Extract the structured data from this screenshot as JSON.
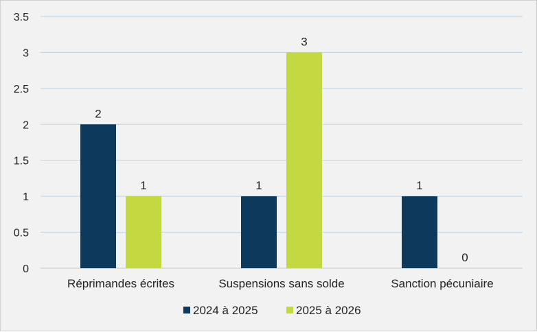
{
  "chart_data": {
    "type": "bar",
    "categories": [
      "Réprimandes écrites",
      "Suspensions sans solde",
      "Sanction pécuniaire"
    ],
    "series": [
      {
        "name": "2024 à 2025",
        "values": [
          2,
          1,
          1
        ],
        "color": "#0d3a5c"
      },
      {
        "name": "2025 à 2026",
        "values": [
          1,
          3,
          0
        ],
        "color": "#c4d842"
      }
    ],
    "ylim": [
      0,
      3.5
    ],
    "yticks": [
      "0",
      "0.5",
      "1",
      "1.5",
      "2",
      "2.5",
      "3",
      "3.5"
    ],
    "grid": true,
    "legend_position": "bottom",
    "background": "#f2f2f2",
    "gridline_color": "#bcd3e6"
  }
}
